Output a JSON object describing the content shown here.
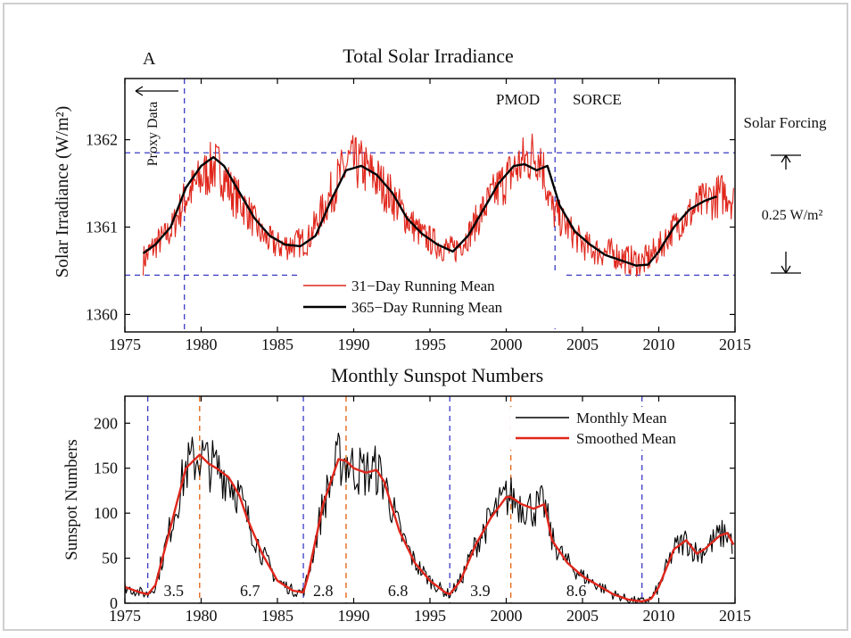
{
  "chart_data": [
    {
      "panel_letter": "A",
      "type": "line",
      "title": "Total Solar Irradiance",
      "ylabel": "Solar Irradiance (W/m²)",
      "xlim": [
        1975,
        2015
      ],
      "ylim": [
        1359.8,
        1362.7
      ],
      "xticks": [
        "1975",
        "1980",
        "1985",
        "1990",
        "1995",
        "2000",
        "2005",
        "2010",
        "2015"
      ],
      "yticks": [
        "1360",
        "1361",
        "1362"
      ],
      "legend_position": "bottom-center",
      "hlines": [
        1361.85,
        1360.45
      ],
      "vlines": [
        1978.9,
        2003.2
      ],
      "annotations": {
        "proxy": "Proxy Data",
        "pmod": "PMOD",
        "sorce": "SORCE",
        "forcing_label": "Solar Forcing",
        "forcing_value": "0.25 W/m²"
      },
      "series": [
        {
          "name": "31−Day Running Mean",
          "color": "#e0261b",
          "style": "noisy",
          "x": [
            1976.2,
            1977,
            1978,
            1979,
            1980,
            1980.8,
            1981.3,
            1982,
            1983,
            1984,
            1985,
            1986,
            1987,
            1988,
            1989,
            1989.7,
            1990.5,
            1991.5,
            1992.5,
            1993.5,
            1994.5,
            1995.5,
            1996.5,
            1997.5,
            1998.5,
            1999.5,
            2000.5,
            2001.5,
            2002.2,
            2003,
            2004,
            2005,
            2006,
            2007,
            2008,
            2009,
            2010,
            2011,
            2012,
            2013,
            2013.8,
            2014.5,
            2014.9
          ],
          "y": [
            1360.62,
            1360.8,
            1360.95,
            1361.35,
            1361.55,
            1361.7,
            1361.65,
            1361.4,
            1361.2,
            1360.9,
            1360.78,
            1360.8,
            1360.85,
            1361.2,
            1361.55,
            1361.75,
            1361.7,
            1361.55,
            1361.35,
            1361.1,
            1360.9,
            1360.8,
            1360.72,
            1360.9,
            1361.2,
            1361.45,
            1361.65,
            1361.8,
            1361.85,
            1361.2,
            1361.0,
            1360.8,
            1360.72,
            1360.7,
            1360.62,
            1360.6,
            1360.75,
            1361.0,
            1361.15,
            1361.3,
            1361.35,
            1361.4,
            1361.3
          ],
          "values_note": ""
        },
        {
          "name": "365−Day Running Mean",
          "color": "#000000",
          "style": "smooth",
          "x": [
            1976.2,
            1977,
            1978,
            1979,
            1980,
            1980.8,
            1981.5,
            1982.5,
            1983.5,
            1984.5,
            1985.5,
            1986.5,
            1987.5,
            1988.5,
            1989.5,
            1990.5,
            1991.5,
            1992.5,
            1993.5,
            1994.5,
            1995.5,
            1996.5,
            1997.5,
            1998.5,
            1999.5,
            2000.5,
            2001.2,
            2002,
            2002.7,
            2003.5,
            2004.5,
            2005.5,
            2006.5,
            2007.5,
            2008.5,
            2009.3,
            2010,
            2011,
            2012,
            2013,
            2013.8
          ],
          "y": [
            1360.7,
            1360.8,
            1361.0,
            1361.45,
            1361.7,
            1361.8,
            1361.7,
            1361.4,
            1361.1,
            1360.9,
            1360.8,
            1360.78,
            1360.9,
            1361.3,
            1361.65,
            1361.7,
            1361.6,
            1361.4,
            1361.1,
            1360.92,
            1360.8,
            1360.72,
            1360.9,
            1361.2,
            1361.5,
            1361.7,
            1361.72,
            1361.65,
            1361.7,
            1361.25,
            1360.95,
            1360.8,
            1360.68,
            1360.62,
            1360.56,
            1360.57,
            1360.72,
            1361.0,
            1361.2,
            1361.3,
            1361.35
          ]
        }
      ]
    },
    {
      "type": "line",
      "title": "Monthly Sunspot Numbers",
      "ylabel": "Sunspot Numbers",
      "xlim": [
        1975,
        2015
      ],
      "ylim": [
        0,
        230
      ],
      "xticks": [
        "1975",
        "1980",
        "1985",
        "1990",
        "1995",
        "2000",
        "2005",
        "2010",
        "2015"
      ],
      "yticks": [
        "0",
        "50",
        "100",
        "150",
        "200"
      ],
      "legend_position": "top-right",
      "minima_lines": [
        1976.5,
        1986.7,
        1996.3,
        2008.9
      ],
      "maxima_lines": [
        1979.9,
        1989.5,
        2000.3
      ],
      "cycle_labels": [
        {
          "x": 1978.2,
          "text": "3.5"
        },
        {
          "x": 1983.2,
          "text": "6.7"
        },
        {
          "x": 1988.0,
          "text": "2.8"
        },
        {
          "x": 1992.9,
          "text": "6.8"
        },
        {
          "x": 1998.3,
          "text": "3.9"
        },
        {
          "x": 2004.6,
          "text": "8.6"
        }
      ],
      "series": [
        {
          "name": "Monthly Mean",
          "color": "#000000",
          "style": "noisy",
          "x": [
            1975,
            1976,
            1976.5,
            1977,
            1978,
            1979,
            1979.9,
            1980.5,
            1981,
            1981.8,
            1982.5,
            1983,
            1984,
            1985,
            1986,
            1986.7,
            1987,
            1988,
            1989,
            1989.5,
            1990,
            1990.8,
            1991.5,
            1992,
            1993,
            1994,
            1995,
            1996,
            1996.3,
            1997,
            1998,
            1999,
            2000,
            2000.3,
            2001,
            2001.8,
            2002.5,
            2003,
            2004,
            2005,
            2006,
            2007,
            2008,
            2008.9,
            2009.5,
            2010,
            2011,
            2011.8,
            2012.5,
            2013,
            2014,
            2014.5,
            2014.9
          ],
          "y": [
            18,
            12,
            10,
            20,
            85,
            150,
            165,
            155,
            150,
            140,
            120,
            95,
            55,
            25,
            14,
            12,
            30,
            110,
            160,
            158,
            150,
            145,
            148,
            135,
            80,
            45,
            25,
            12,
            10,
            25,
            65,
            95,
            118,
            118,
            110,
            105,
            110,
            70,
            45,
            30,
            20,
            10,
            4,
            2,
            5,
            18,
            60,
            70,
            55,
            60,
            75,
            78,
            65
          ]
        },
        {
          "name": "Smoothed Mean",
          "color": "#e0261b",
          "style": "smooth",
          "x": [
            1975,
            1976,
            1976.5,
            1977,
            1978,
            1979,
            1979.9,
            1980.5,
            1981,
            1981.8,
            1982.5,
            1983,
            1984,
            1985,
            1986,
            1986.7,
            1987,
            1988,
            1989,
            1989.5,
            1990,
            1990.8,
            1991.5,
            1992,
            1993,
            1994,
            1995,
            1996,
            1996.3,
            1997,
            1998,
            1999,
            2000,
            2000.3,
            2001,
            2001.8,
            2002.5,
            2003,
            2004,
            2005,
            2006,
            2007,
            2008,
            2008.9,
            2009.5,
            2010,
            2011,
            2011.8,
            2012.5,
            2013,
            2014,
            2014.5,
            2014.9
          ],
          "y": [
            18,
            12,
            10,
            20,
            85,
            150,
            165,
            155,
            150,
            140,
            120,
            95,
            55,
            25,
            14,
            12,
            30,
            110,
            160,
            158,
            150,
            145,
            148,
            135,
            80,
            45,
            25,
            12,
            10,
            25,
            65,
            95,
            118,
            118,
            110,
            105,
            110,
            70,
            45,
            30,
            20,
            10,
            4,
            2,
            5,
            18,
            60,
            70,
            55,
            60,
            75,
            78,
            65
          ]
        }
      ]
    }
  ]
}
